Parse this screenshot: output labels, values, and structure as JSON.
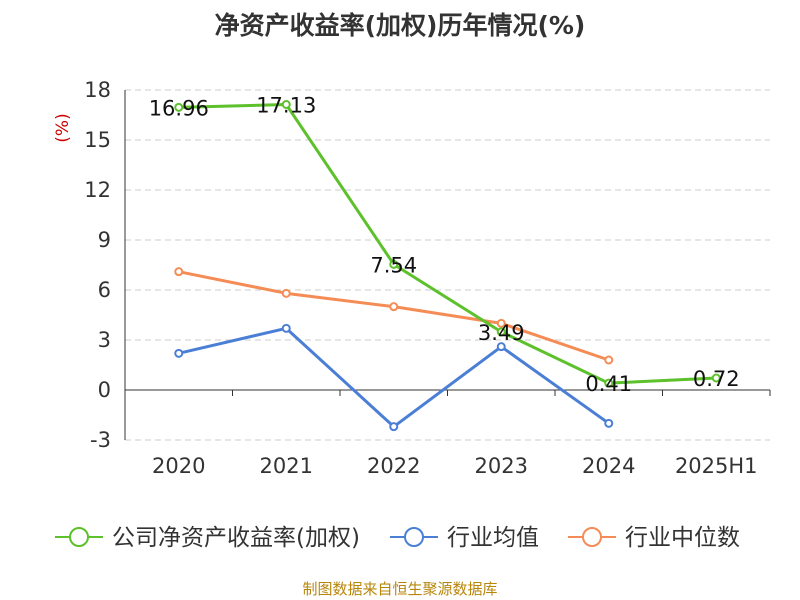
{
  "title": "净资产收益率(加权)历年情况(%)",
  "source": "制图数据来自恒生聚源数据库",
  "chart_data": {
    "type": "line",
    "title": "净资产收益率(加权)历年情况(%)",
    "ylabel": "(%)",
    "xlabel": "",
    "categories": [
      "2020",
      "2021",
      "2022",
      "2023",
      "2024",
      "2025H1"
    ],
    "yticks": [
      -3,
      0,
      3,
      6,
      9,
      12,
      15,
      18
    ],
    "ylim": [
      -3,
      18
    ],
    "grid": true,
    "legend_position": "bottom",
    "series": [
      {
        "name": "公司净资产收益率(加权)",
        "color": "#5cc12a",
        "values": [
          16.96,
          17.13,
          7.54,
          3.49,
          0.41,
          0.72
        ],
        "labels": [
          "16.96",
          "17.13",
          "7.54",
          "3.49",
          "0.41",
          "0.72"
        ]
      },
      {
        "name": "行业均值",
        "color": "#4b7fd6",
        "values": [
          2.2,
          3.7,
          -2.2,
          2.6,
          -2.0,
          null
        ]
      },
      {
        "name": "行业中位数",
        "color": "#f58c55",
        "values": [
          7.1,
          5.8,
          5.0,
          4.0,
          1.8,
          null
        ]
      }
    ]
  }
}
